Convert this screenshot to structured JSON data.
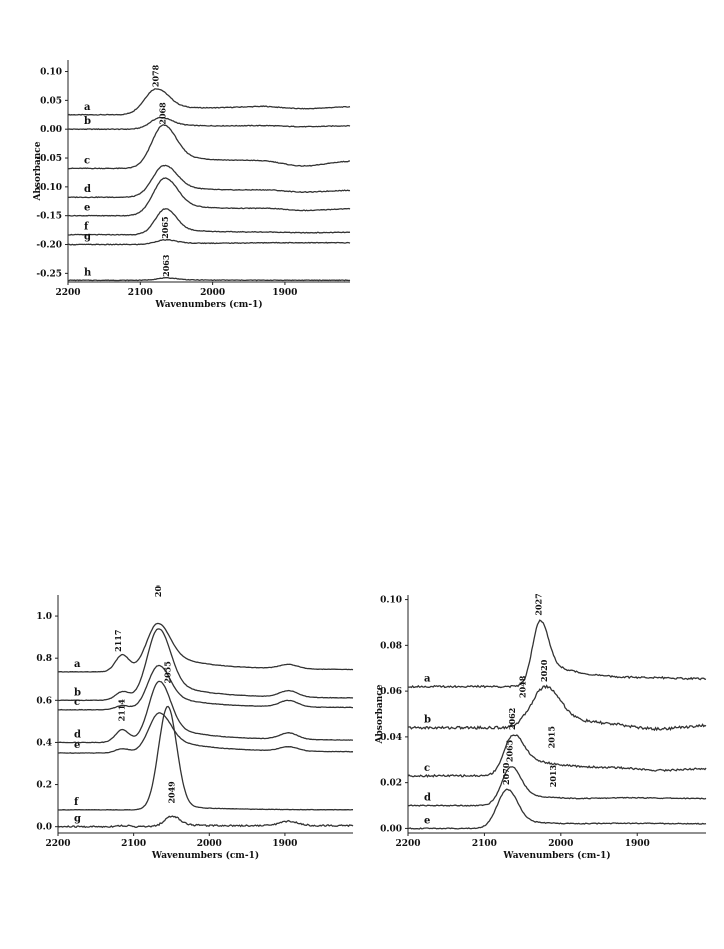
{
  "chart_data": [
    {
      "type": "line",
      "ylabel": "Absorbance",
      "xlabel": "Wavenumbers (cm-1)",
      "xlim": [
        2200,
        1810
      ],
      "ylim": [
        -0.265,
        0.12
      ],
      "yticks": [
        "0.10",
        "0.05",
        "0.00",
        "-0.05",
        "-0.10",
        "-0.15",
        "-0.20",
        "-0.25"
      ],
      "ytick_values": [
        0.1,
        0.05,
        0.0,
        -0.05,
        -0.1,
        -0.15,
        -0.2,
        -0.25
      ],
      "xticks": [
        "2200",
        "2100",
        "2000",
        "1900"
      ],
      "xtick_values": [
        2200,
        2100,
        2000,
        1900
      ],
      "series": [
        {
          "label": "a",
          "baseline": 0.025,
          "peak_x": 2078,
          "peak_height": 0.045,
          "width": 16,
          "tail": 0.018,
          "end_offset": 0.014,
          "dip": 0.004,
          "noise": 0.0006
        },
        {
          "label": "b",
          "baseline": 0.0,
          "peak_x": 2072,
          "peak_height": 0.02,
          "width": 14,
          "tail": 0.01,
          "end_offset": 0.006,
          "dip": 0.002,
          "noise": 0.0006
        },
        {
          "label": "c",
          "baseline": -0.068,
          "peak_x": 2068,
          "peak_height": 0.075,
          "width": 16,
          "tail": 0.03,
          "end_offset": 0.013,
          "dip": 0.01,
          "noise": 0.0006
        },
        {
          "label": "d",
          "baseline": -0.118,
          "peak_x": 2067,
          "peak_height": 0.055,
          "width": 16,
          "tail": 0.025,
          "end_offset": 0.012,
          "dip": 0.004,
          "noise": 0.0006
        },
        {
          "label": "e",
          "baseline": -0.15,
          "peak_x": 2066,
          "peak_height": 0.065,
          "width": 16,
          "tail": 0.026,
          "end_offset": 0.012,
          "dip": 0.004,
          "noise": 0.0006
        },
        {
          "label": "f",
          "baseline": -0.183,
          "peak_x": 2065,
          "peak_height": 0.045,
          "width": 14,
          "tail": 0.012,
          "end_offset": 0.004,
          "dip": 0.001,
          "noise": 0.0006
        },
        {
          "label": "g",
          "baseline": -0.2,
          "peak_x": 2065,
          "peak_height": 0.008,
          "width": 14,
          "tail": 0.003,
          "end_offset": 0.003,
          "dip": 0.0,
          "noise": 0.0006
        },
        {
          "label": "h",
          "baseline": -0.262,
          "peak_x": 2063,
          "peak_height": 0.004,
          "width": 14,
          "tail": 0.001,
          "end_offset": 0.0,
          "dip": 0.0,
          "noise": 0.0005
        }
      ],
      "peak_labels": [
        {
          "text": "2078",
          "x": 2075,
          "y": 0.073
        },
        {
          "text": "2068",
          "x": 2065,
          "y": 0.008
        },
        {
          "text": "2065",
          "x": 2062,
          "y": -0.19
        },
        {
          "text": "2063",
          "x": 2060,
          "y": -0.256
        }
      ]
    },
    {
      "type": "line",
      "ylabel": "",
      "xlabel": "Wavenumbers (cm-1)",
      "xlim": [
        2200,
        1810
      ],
      "ylim": [
        -0.03,
        1.1
      ],
      "yticks": [
        "1.0",
        "0.8",
        "0.6",
        "0.4",
        "0.2",
        "0.0"
      ],
      "ytick_values": [
        1.0,
        0.8,
        0.6,
        0.4,
        0.2,
        0.0
      ],
      "xticks": [
        "2200",
        "2100",
        "2000",
        "1900"
      ],
      "xtick_values": [
        2200,
        2100,
        2000,
        1900
      ],
      "series": [
        {
          "label": "a",
          "baseline": 0.735,
          "peak_x": 2068,
          "peak_height": 0.23,
          "width": 15,
          "tail": 0.1,
          "end_offset": 0.01,
          "dip": 0.0,
          "bump2117": 0.08,
          "bump1900": 0.02,
          "noise": 0.001
        },
        {
          "label": "b",
          "baseline": 0.6,
          "peak_x": 2067,
          "peak_height": 0.34,
          "width": 15,
          "tail": 0.1,
          "end_offset": 0.01,
          "dip": 0.0,
          "bump2117": 0.04,
          "bump1900": 0.03,
          "noise": 0.001
        },
        {
          "label": "c",
          "baseline": 0.555,
          "peak_x": 2067,
          "peak_height": 0.21,
          "width": 14,
          "tail": 0.08,
          "end_offset": 0.01,
          "dip": 0.0,
          "bump2117": 0.02,
          "bump1900": 0.03,
          "noise": 0.001
        },
        {
          "label": "d",
          "baseline": 0.4,
          "peak_x": 2066,
          "peak_height": 0.29,
          "width": 14,
          "tail": 0.09,
          "end_offset": 0.01,
          "dip": 0.0,
          "bump2117": 0.06,
          "bump1900": 0.03,
          "noise": 0.001
        },
        {
          "label": "e",
          "baseline": 0.35,
          "peak_x": 2066,
          "peak_height": 0.19,
          "width": 14,
          "tail": 0.08,
          "end_offset": 0.005,
          "dip": 0.0,
          "bump2117": 0.02,
          "bump1900": 0.02,
          "noise": 0.001
        },
        {
          "label": "f",
          "baseline": 0.08,
          "peak_x": 2055,
          "peak_height": 0.49,
          "width": 12,
          "tail": 0.02,
          "end_offset": 0.0,
          "dip": 0.0,
          "bump2117": 0.0,
          "bump1900": 0.0,
          "noise": 0.001
        },
        {
          "label": "g",
          "baseline": 0.0,
          "peak_x": 2049,
          "peak_height": 0.05,
          "width": 10,
          "tail": 0.01,
          "end_offset": 0.005,
          "dip": 0.0,
          "bump2117": 0.005,
          "bump1900": 0.02,
          "noise": 0.004
        }
      ],
      "peak_labels": [
        {
          "text": "2117",
          "x": 2117,
          "y": 0.83
        },
        {
          "text": "2064",
          "x": 2064,
          "y": 1.09
        },
        {
          "text": "2114",
          "x": 2112,
          "y": 0.5
        },
        {
          "text": "2055",
          "x": 2051,
          "y": 0.68
        },
        {
          "text": "2049",
          "x": 2046,
          "y": 0.11
        }
      ]
    },
    {
      "type": "line",
      "ylabel": "Absorbance",
      "xlabel": "Wavenumbers (cm-1)",
      "xlim": [
        2200,
        1810
      ],
      "ylim": [
        -0.002,
        0.102
      ],
      "yticks": [
        "0.10",
        "0.08",
        "0.06",
        "0.04",
        "0.02",
        "0.00"
      ],
      "ytick_values": [
        0.1,
        0.08,
        0.06,
        0.04,
        0.02,
        0.0
      ],
      "xticks": [
        "2200",
        "2100",
        "2000",
        "1900"
      ],
      "xtick_values": [
        2200,
        2100,
        2000,
        1900
      ],
      "series": [
        {
          "label": "a",
          "baseline": 0.062,
          "peak_x": 2027,
          "peak_height": 0.029,
          "width": 10,
          "tail": 0.012,
          "end_offset": 0.003,
          "dip": 0.0,
          "noise": 0.0004
        },
        {
          "label": "b",
          "baseline": 0.044,
          "peak_x": 2020,
          "peak_height": 0.018,
          "width": 18,
          "tail": 0.006,
          "end_offset": 0.001,
          "dip": 0.002,
          "noise": 0.0006
        },
        {
          "label": "c",
          "baseline": 0.023,
          "peak_x": 2062,
          "peak_height": 0.018,
          "width": 12,
          "tail": 0.01,
          "end_offset": 0.003,
          "dip": 0.001,
          "noise": 0.0004
        },
        {
          "label": "d",
          "baseline": 0.01,
          "peak_x": 2065,
          "peak_height": 0.017,
          "width": 12,
          "tail": 0.006,
          "end_offset": 0.003,
          "dip": 0.0,
          "noise": 0.0002
        },
        {
          "label": "e",
          "baseline": 0.0,
          "peak_x": 2070,
          "peak_height": 0.017,
          "width": 13,
          "tail": 0.004,
          "end_offset": 0.002,
          "dip": 0.0,
          "noise": 0.0002
        }
      ],
      "peak_labels": [
        {
          "text": "2027",
          "x": 2025,
          "y": 0.093
        },
        {
          "text": "2048",
          "x": 2046,
          "y": 0.057
        },
        {
          "text": "2020",
          "x": 2018,
          "y": 0.064
        },
        {
          "text": "2062",
          "x": 2060,
          "y": 0.043
        },
        {
          "text": "2015",
          "x": 2008,
          "y": 0.035
        },
        {
          "text": "2065",
          "x": 2063,
          "y": 0.029
        },
        {
          "text": "2013",
          "x": 2006,
          "y": 0.018
        },
        {
          "text": "2070",
          "x": 2068,
          "y": 0.019
        }
      ]
    }
  ]
}
